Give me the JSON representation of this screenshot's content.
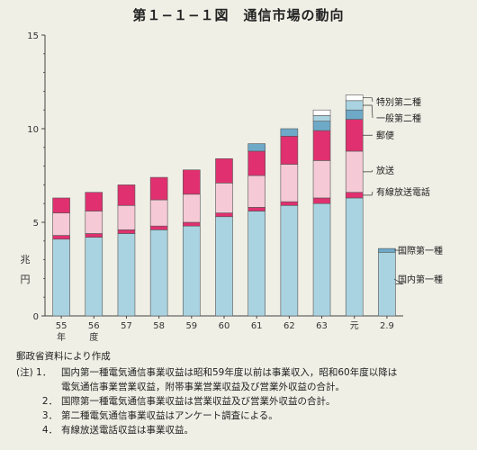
{
  "title": "第１−１−１図　通信市場の動向",
  "chart_data": {
    "type": "bar",
    "stacked": true,
    "ylabel": "兆円",
    "ylim": [
      0,
      15
    ],
    "yticks": [
      0,
      5,
      10,
      15
    ],
    "categories": [
      "55",
      "56",
      "57",
      "58",
      "59",
      "60",
      "61",
      "62",
      "63",
      "元",
      "2.9"
    ],
    "xlabel_sub": [
      "年",
      "度"
    ],
    "series": [
      {
        "name": "国内第一種",
        "color": "#a9d3e0",
        "values": [
          4.1,
          4.2,
          4.4,
          4.6,
          4.8,
          5.3,
          5.6,
          5.9,
          6.0,
          6.3,
          3.4
        ]
      },
      {
        "name": "有線放送電話",
        "color": "#e0306f",
        "values": [
          0.2,
          0.2,
          0.2,
          0.2,
          0.2,
          0.2,
          0.2,
          0.2,
          0.3,
          0.3,
          0
        ]
      },
      {
        "name": "放送",
        "color": "#f6c9d6",
        "values": [
          1.2,
          1.2,
          1.3,
          1.4,
          1.5,
          1.6,
          1.7,
          2.0,
          2.0,
          2.2,
          0
        ]
      },
      {
        "name": "郵便",
        "color": "#e0306f",
        "values": [
          0.8,
          1.0,
          1.1,
          1.2,
          1.3,
          1.3,
          1.3,
          1.5,
          1.6,
          1.7,
          0
        ]
      },
      {
        "name": "国際第一種",
        "color": "#6ea9c8",
        "values": [
          0,
          0,
          0,
          0,
          0,
          0,
          0.4,
          0.4,
          0.5,
          0.5,
          0.2
        ]
      },
      {
        "name": "一般第二種",
        "color": "#a9d3e0",
        "values": [
          0,
          0,
          0,
          0,
          0,
          0,
          0,
          0,
          0.3,
          0.5,
          0
        ]
      },
      {
        "name": "特別第二種",
        "color": "#ffffff",
        "values": [
          0,
          0,
          0,
          0,
          0,
          0,
          0,
          0,
          0.3,
          0.3,
          0
        ]
      }
    ],
    "legend_labels": [
      {
        "series": "特別第二種",
        "label": "特別第二種"
      },
      {
        "series": "一般第二種",
        "label": "一般第二種"
      },
      {
        "series": "郵便",
        "label": "郵便"
      },
      {
        "series": "放送",
        "label": "放送"
      },
      {
        "series": "有線放送電話",
        "label": "有線放送電話"
      }
    ],
    "last_bar_labels": [
      {
        "series": "国際第一種",
        "label": "国際第一種"
      },
      {
        "series": "国内第一種",
        "label": "国内第一種"
      }
    ]
  },
  "notes": {
    "source": "郵政省資料により作成",
    "items": [
      {
        "lead": "(注) 1．",
        "lines": [
          "国内第一種電気通信事業収益は昭和59年度以前は事業収入，昭和60年度以降は",
          "電気通信事業営業収益，附帯事業営業収益及び営業外収益の合計。"
        ]
      },
      {
        "lead": "2．",
        "lines": [
          "国際第一種電気通信事業収益は営業収益及び営業外収益の合計。"
        ]
      },
      {
        "lead": "3．",
        "lines": [
          "第二種電気通信事業収益はアンケート調査による。"
        ]
      },
      {
        "lead": "4．",
        "lines": [
          "有線放送電話収益は事業収益。"
        ]
      }
    ]
  }
}
